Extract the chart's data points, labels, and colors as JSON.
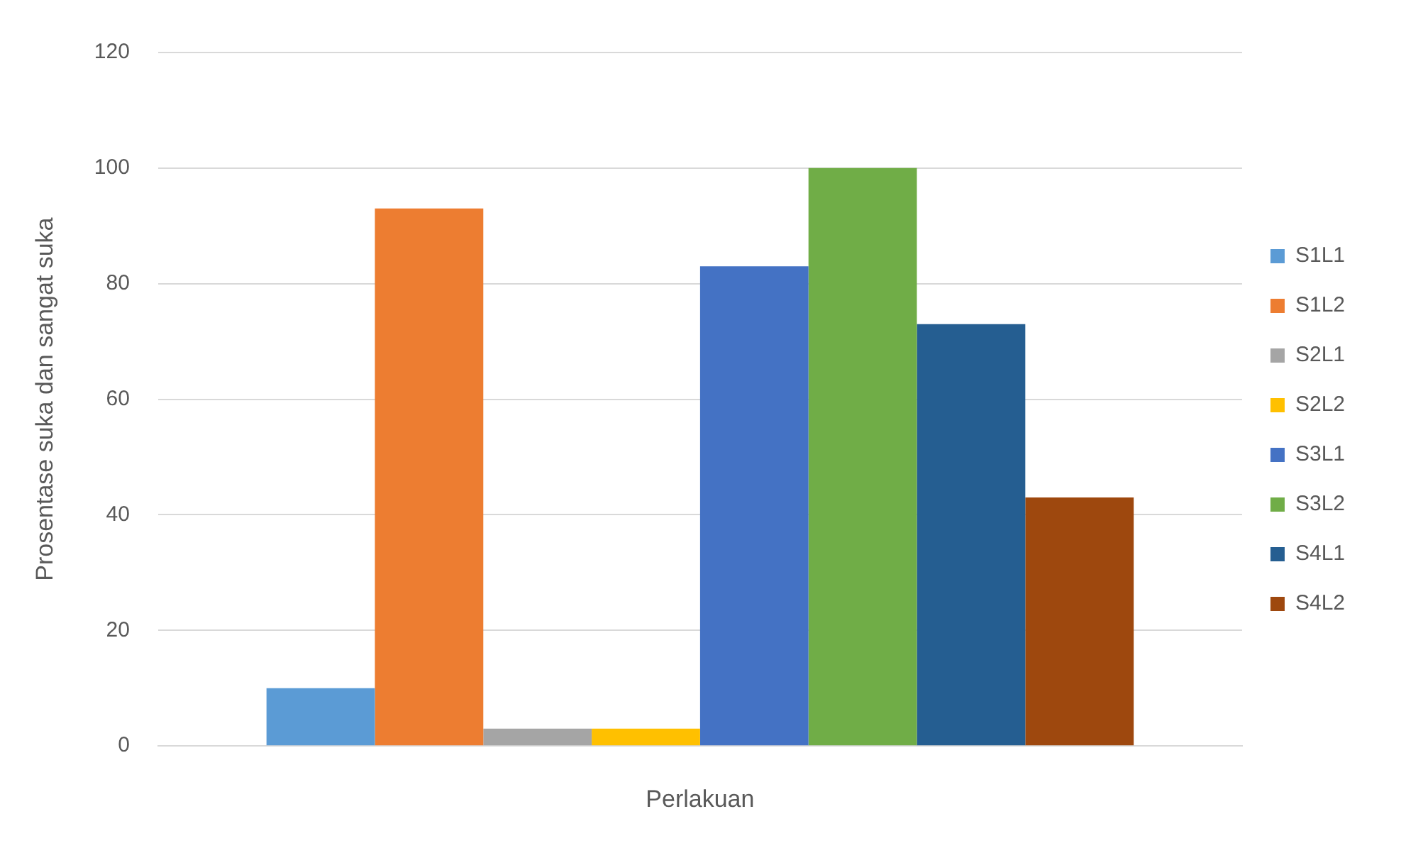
{
  "chart_data": {
    "type": "bar",
    "xlabel": "Perlakuan",
    "ylabel": "Prosentase suka dan sangat suka",
    "categories": [
      null
    ],
    "series": [
      {
        "name": "S1L1",
        "color": "#5b9bd5",
        "values": [
          10
        ]
      },
      {
        "name": "S1L2",
        "color": "#ed7d31",
        "values": [
          93
        ]
      },
      {
        "name": "S2L1",
        "color": "#a5a5a5",
        "values": [
          3
        ]
      },
      {
        "name": "S2L2",
        "color": "#ffc000",
        "values": [
          3
        ]
      },
      {
        "name": "S3L1",
        "color": "#4472c4",
        "values": [
          83
        ]
      },
      {
        "name": "S3L2",
        "color": "#70ad47",
        "values": [
          100
        ]
      },
      {
        "name": "S4L1",
        "color": "#255e91",
        "values": [
          73
        ]
      },
      {
        "name": "S4L2",
        "color": "#9e480e",
        "values": [
          43
        ]
      }
    ],
    "ylim": [
      0,
      120
    ],
    "yticks": [
      0,
      20,
      40,
      60,
      80,
      100,
      120
    ],
    "grid": "y",
    "legend": "right"
  }
}
